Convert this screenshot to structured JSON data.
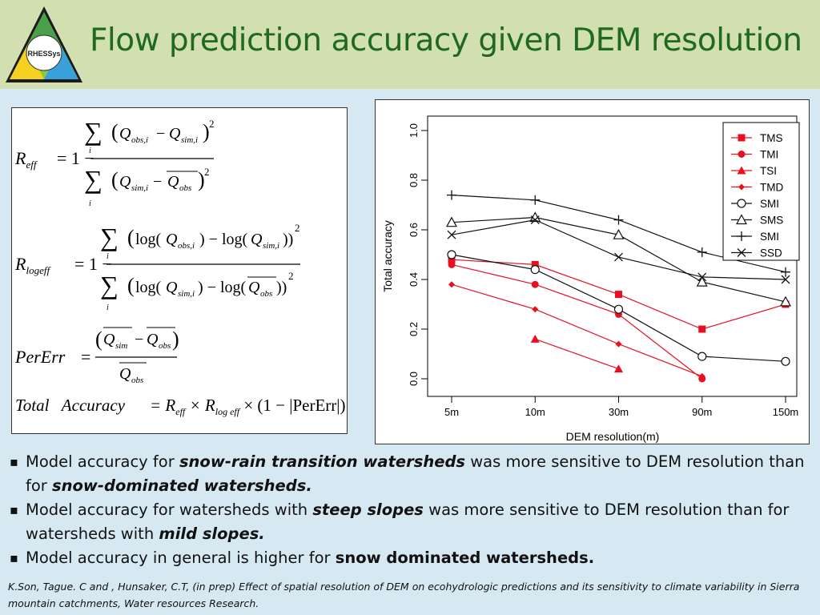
{
  "slide": {
    "title": "Flow prediction accuracy given DEM resolution",
    "logo_text": "RHESSys"
  },
  "formulas": {
    "reff_lhs": "R",
    "reff_sub": "eff",
    "logeff_lhs": "R",
    "logeff_sub": "logeff",
    "pererr_lhs": "PerErr",
    "total_lhs": "Total   Accuracy",
    "total_rhs": "= R",
    "total_eff": "eff",
    "total_times": " × R",
    "total_logeff": "log eff",
    "total_tail": " × (1 − |PerErr|)"
  },
  "bullets": [
    {
      "parts": [
        {
          "t": "Model accuracy for ",
          "s": "n"
        },
        {
          "t": "snow-rain transition watersheds",
          "s": "bi"
        },
        {
          "t": " was more sensitive to DEM resolution than for ",
          "s": "n"
        },
        {
          "t": "snow-dominated watersheds.",
          "s": "bi"
        }
      ]
    },
    {
      "parts": [
        {
          "t": "Model accuracy for watersheds with ",
          "s": "n"
        },
        {
          "t": "steep slopes",
          "s": "bi"
        },
        {
          "t": " was more sensitive to DEM resolution than for watersheds with ",
          "s": "n"
        },
        {
          "t": "mild slopes.",
          "s": "bi"
        }
      ]
    },
    {
      "parts": [
        {
          "t": "Model accuracy in general is higher for ",
          "s": "n"
        },
        {
          "t": "snow dominated watersheds.",
          "s": "b"
        }
      ]
    }
  ],
  "reference": "K.Son, Tague. C and , Hunsaker, C.T, (in prep) Effect of spatial resolution of DEM on ecohydrologic predictions and its sensitivity to climate variability in Sierra mountain catchments, Water resources Research.",
  "chart_data": {
    "type": "line",
    "xlabel": "DEM resolution(m)",
    "ylabel": "Total accuracy",
    "categories": [
      "5m",
      "10m",
      "30m",
      "90m",
      "150m"
    ],
    "ylim": [
      0,
      1
    ],
    "yticks": [
      "0.0",
      "0.2",
      "0.4",
      "0.6",
      "0.8",
      "1.0"
    ],
    "legend_position": "top-right",
    "series": [
      {
        "name": "TMS",
        "color": "#e8101e",
        "marker": "square",
        "values": [
          0.48,
          0.46,
          0.34,
          0.2,
          0.3
        ]
      },
      {
        "name": "TMI",
        "color": "#e8101e",
        "marker": "circle",
        "values": [
          0.46,
          0.38,
          0.26,
          0.0,
          null
        ]
      },
      {
        "name": "TSI",
        "color": "#e8101e",
        "marker": "triangle",
        "values": [
          null,
          0.16,
          0.04,
          null,
          null
        ]
      },
      {
        "name": "TMD",
        "color": "#e8101e",
        "marker": "diamond",
        "values": [
          0.38,
          0.28,
          0.14,
          0.01,
          null
        ]
      },
      {
        "name": "SMI",
        "color": "#111111",
        "marker": "open-circle",
        "values": [
          0.5,
          0.44,
          0.28,
          0.09,
          0.07
        ]
      },
      {
        "name": "SMS",
        "color": "#111111",
        "marker": "open-triangle",
        "values": [
          0.63,
          0.65,
          0.58,
          0.39,
          0.31
        ]
      },
      {
        "name": "SMI",
        "color": "#111111",
        "marker": "plus",
        "values": [
          0.74,
          0.72,
          0.64,
          0.51,
          0.43
        ]
      },
      {
        "name": "SSD",
        "color": "#111111",
        "marker": "cross",
        "values": [
          0.58,
          0.64,
          0.49,
          0.41,
          0.4
        ]
      }
    ]
  }
}
